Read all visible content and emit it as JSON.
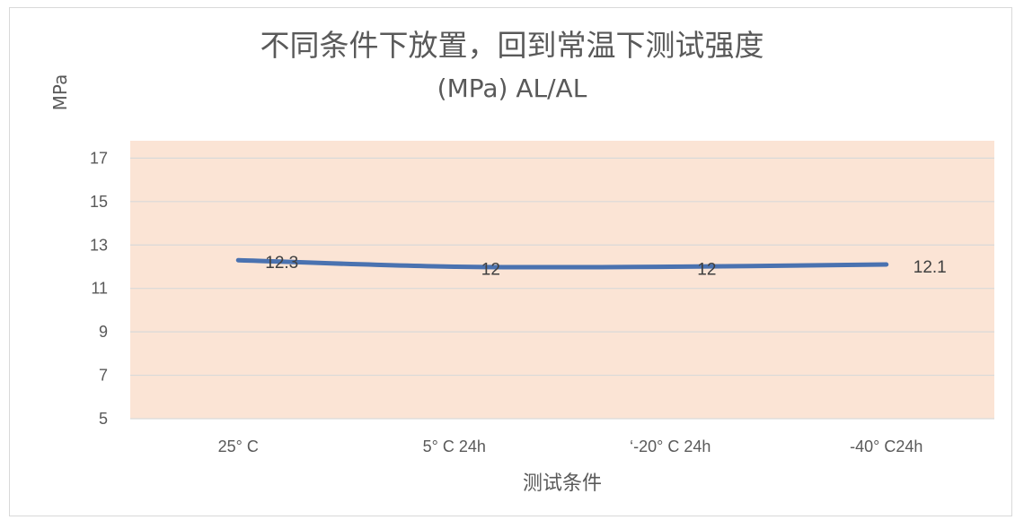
{
  "chart_data": {
    "type": "line",
    "title_line1": "不同条件下放置，回到常温下测试强度",
    "title_line2": "(MPa)  AL/AL",
    "xlabel": "测试条件",
    "ylabel": "MPa",
    "categories": [
      "25°  C",
      "5°  C 24h",
      "‘-20°  C 24h",
      "-40°  C24h"
    ],
    "series": [
      {
        "values": [
          12.3,
          12,
          12,
          12.1
        ],
        "data_labels": [
          "12.3",
          "12",
          "12",
          "12.1"
        ]
      }
    ],
    "ylim": [
      5,
      17
    ],
    "yticks": [
      5,
      7,
      9,
      11,
      13,
      15,
      17
    ],
    "grid": true,
    "legend": "none",
    "colors": {
      "line": "#4a72b0",
      "plot_bg": "#fbe4d5",
      "grid": "#d9d9d9"
    }
  }
}
